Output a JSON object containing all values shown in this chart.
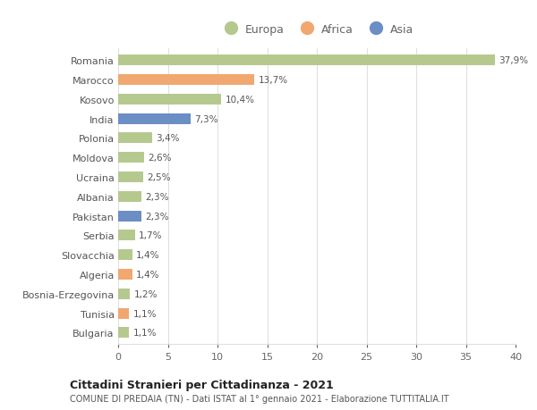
{
  "countries": [
    "Romania",
    "Marocco",
    "Kosovo",
    "India",
    "Polonia",
    "Moldova",
    "Ucraina",
    "Albania",
    "Pakistan",
    "Serbia",
    "Slovacchia",
    "Algeria",
    "Bosnia-Erzegovina",
    "Tunisia",
    "Bulgaria"
  ],
  "values": [
    37.9,
    13.7,
    10.4,
    7.3,
    3.4,
    2.6,
    2.5,
    2.3,
    2.3,
    1.7,
    1.4,
    1.4,
    1.2,
    1.1,
    1.1
  ],
  "labels": [
    "37,9%",
    "13,7%",
    "10,4%",
    "7,3%",
    "3,4%",
    "2,6%",
    "2,5%",
    "2,3%",
    "2,3%",
    "1,7%",
    "1,4%",
    "1,4%",
    "1,2%",
    "1,1%",
    "1,1%"
  ],
  "continents": [
    "Europa",
    "Africa",
    "Europa",
    "Asia",
    "Europa",
    "Europa",
    "Europa",
    "Europa",
    "Asia",
    "Europa",
    "Europa",
    "Africa",
    "Europa",
    "Africa",
    "Europa"
  ],
  "colors": {
    "Europa": "#b5c98e",
    "Africa": "#f0a870",
    "Asia": "#6b8ec4"
  },
  "xlim": [
    0,
    40
  ],
  "xticks": [
    0,
    5,
    10,
    15,
    20,
    25,
    30,
    35,
    40
  ],
  "title": "Cittadini Stranieri per Cittadinanza - 2021",
  "subtitle": "COMUNE DI PREDAIA (TN) - Dati ISTAT al 1° gennaio 2021 - Elaborazione TUTTITALIA.IT",
  "background_color": "#ffffff",
  "grid_color": "#e0e0e0",
  "bar_height": 0.55
}
